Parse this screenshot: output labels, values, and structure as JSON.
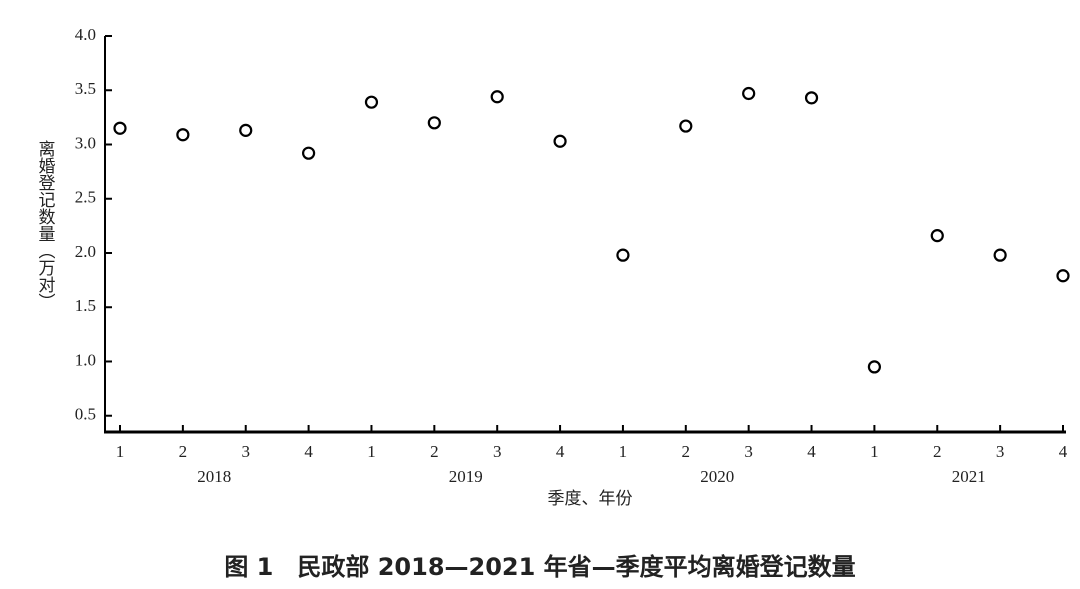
{
  "chart_data": {
    "type": "scatter",
    "title": "图 1　民政部 2018—2021 年省—季度平均离婚登记数量",
    "y_label": "离婚登记数量（万对）",
    "x_label": "季度、年份",
    "categories": [
      "1",
      "2",
      "3",
      "4",
      "1",
      "2",
      "3",
      "4",
      "1",
      "2",
      "3",
      "4",
      "1",
      "2",
      "3",
      "4"
    ],
    "years": [
      "2018",
      "2019",
      "2020",
      "2021"
    ],
    "values": [
      3.15,
      3.09,
      3.13,
      2.92,
      3.39,
      3.2,
      3.44,
      3.03,
      1.98,
      3.17,
      3.47,
      3.43,
      0.95,
      2.16,
      1.98,
      1.79
    ],
    "color": "#000000",
    "ylim": [
      0.35,
      4.0
    ],
    "yticks": [
      0.5,
      {
        "value": 1,
        "label": "1.0"
      },
      1.5,
      {
        "value": 2,
        "label": "2.0"
      },
      2.5,
      {
        "value": 3,
        "label": "3.0"
      },
      3.5,
      {
        "value": 4,
        "label": "4.0"
      }
    ]
  }
}
